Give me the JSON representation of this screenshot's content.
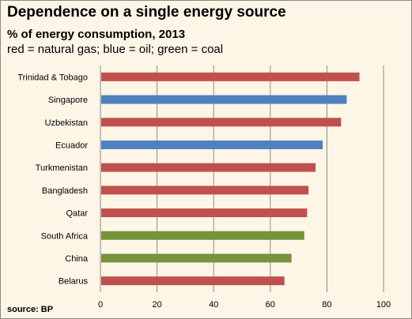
{
  "chart_data": {
    "type": "bar",
    "orientation": "horizontal",
    "title": "Dependence on a single energy source",
    "subtitle": "% of energy consumption, 2013",
    "note": "red = natural gas; blue = oil; green = coal",
    "source": "source: BP",
    "categories": [
      "Trinidad & Tobago",
      "Singapore",
      "Uzbekistan",
      "Ecuador",
      "Turkmenistan",
      "Bangladesh",
      "Qatar",
      "South Africa",
      "China",
      "Belarus"
    ],
    "values": [
      91.5,
      87,
      85,
      78.5,
      76,
      73.5,
      73,
      72,
      67.5,
      65
    ],
    "energy_source": [
      "gas",
      "oil",
      "gas",
      "oil",
      "gas",
      "gas",
      "gas",
      "coal",
      "coal",
      "gas"
    ],
    "colors": {
      "gas": "#c0504d",
      "oil": "#4f81bd",
      "coal": "#77933c"
    },
    "xlim": [
      0,
      100
    ],
    "xticks": [
      "0",
      "20",
      "40",
      "60",
      "80",
      "100"
    ],
    "grid": "vertical",
    "xlabel": "",
    "ylabel": ""
  }
}
